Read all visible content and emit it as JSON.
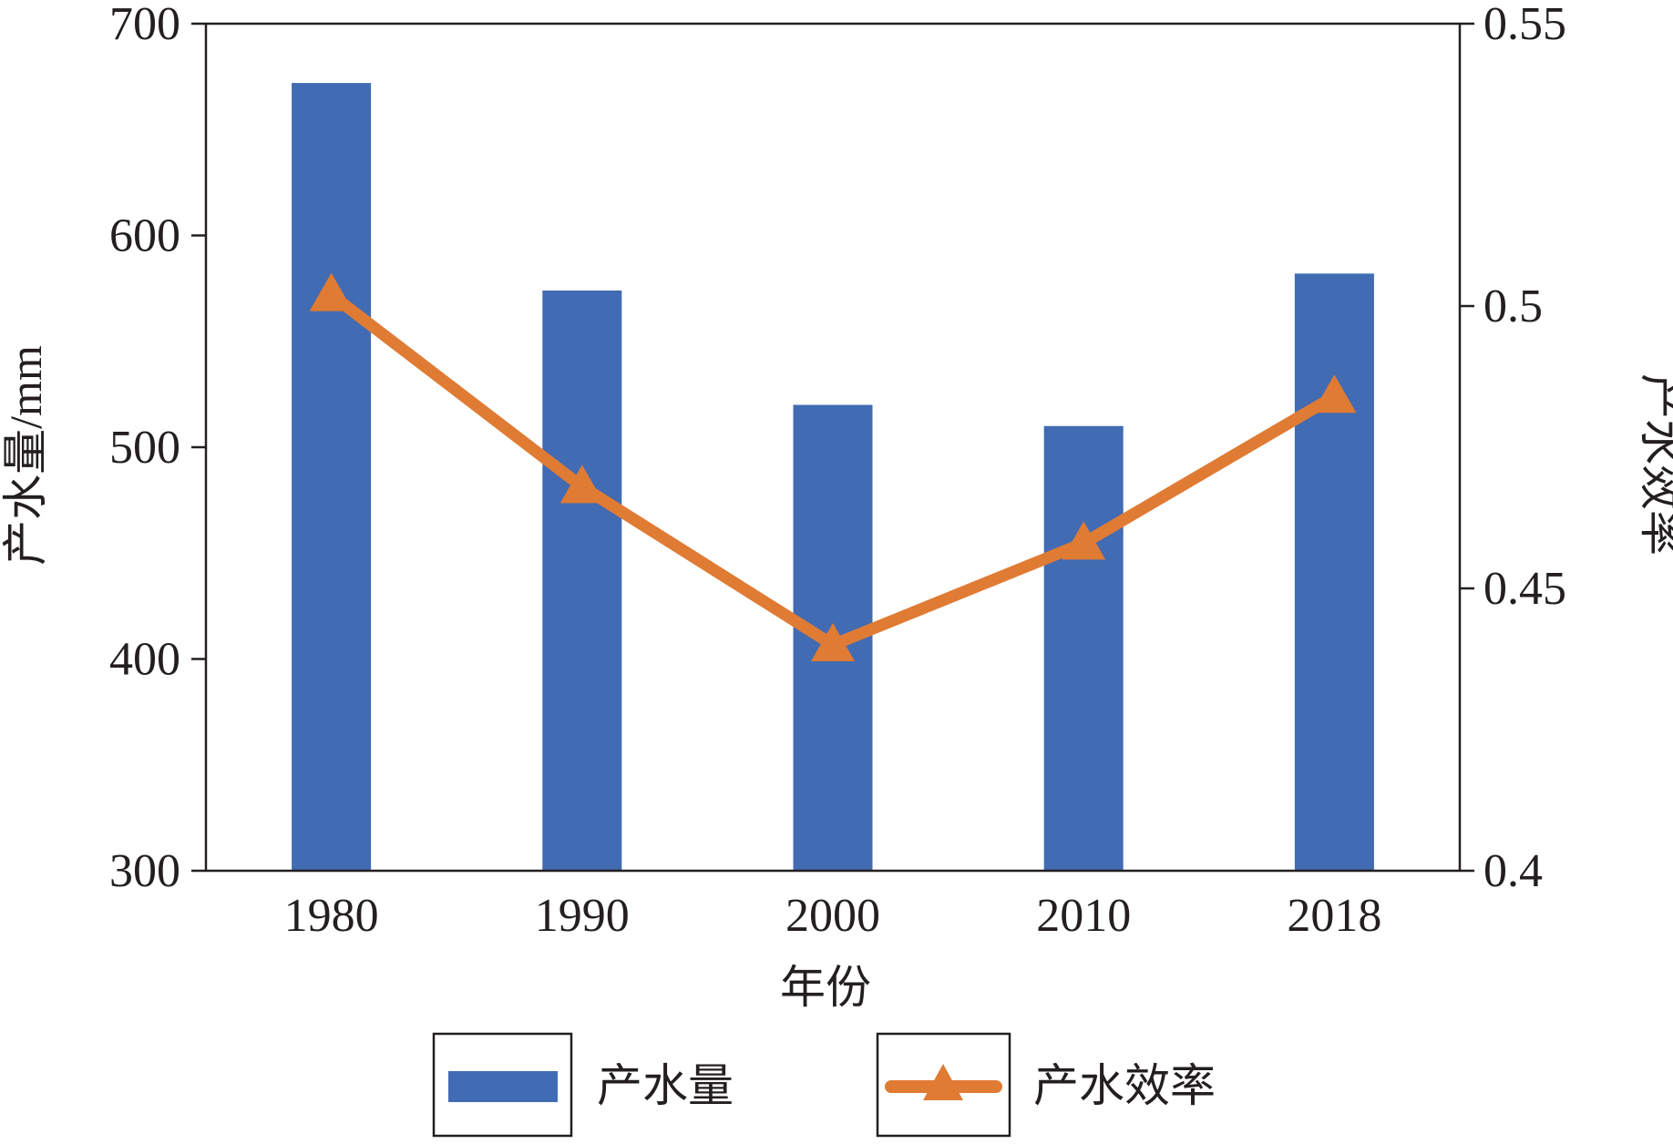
{
  "chart_data": {
    "type": "bar",
    "categories": [
      "1980",
      "1990",
      "2000",
      "2010",
      "2018"
    ],
    "series": [
      {
        "name": "产水量",
        "type": "bar",
        "axis": "left",
        "values": [
          672,
          574,
          520,
          510,
          582
        ]
      },
      {
        "name": "产水效率",
        "type": "line",
        "axis": "right",
        "marker": "triangle",
        "values": [
          0.502,
          0.468,
          0.44,
          0.458,
          0.484
        ]
      }
    ],
    "xlabel": "年份",
    "ylabel": "产水量/mm",
    "y2label": "产水效率",
    "ylim": [
      300,
      700
    ],
    "y2lim": [
      0.4,
      0.55
    ],
    "yticks": [
      "300",
      "400",
      "500",
      "600",
      "700"
    ],
    "y2ticks": [
      "0.4",
      "0.45",
      "0.5",
      "0.55"
    ],
    "legend_position": "bottom",
    "grid": false,
    "colors": {
      "bar": "#416bb3",
      "line": "#e07b34",
      "axis": "#231f20"
    }
  }
}
